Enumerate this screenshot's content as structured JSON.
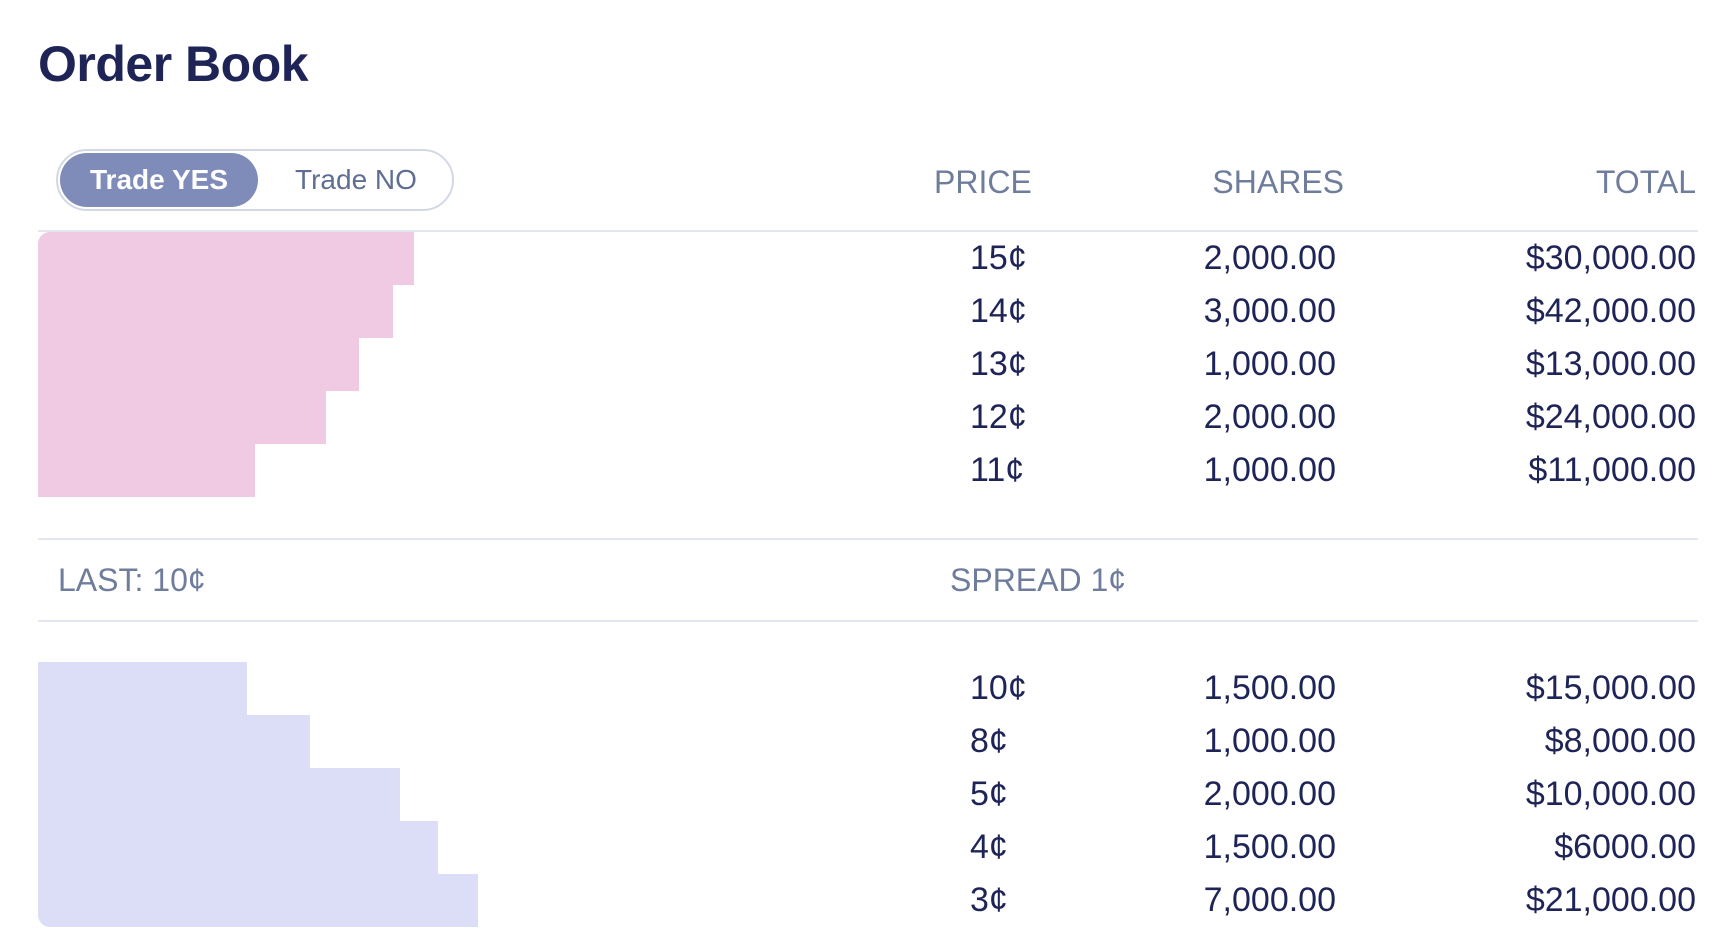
{
  "title": "Order Book",
  "toggle": {
    "yes_label": "Trade YES",
    "no_label": "Trade NO",
    "selected": "Trade YES"
  },
  "columns": {
    "price": "PRICE",
    "shares": "SHARES",
    "total": "TOTAL"
  },
  "asks": [
    {
      "price": "15¢",
      "shares": "2,000.00",
      "total": "$30,000.00",
      "depth": 0.218
    },
    {
      "price": "14¢",
      "shares": "3,000.00",
      "total": "$42,000.00",
      "depth": 0.206
    },
    {
      "price": "13¢",
      "shares": "1,000.00",
      "total": "$13,000.00",
      "depth": 0.186
    },
    {
      "price": "12¢",
      "shares": "2,000.00",
      "total": "$24,000.00",
      "depth": 0.167
    },
    {
      "price": "11¢",
      "shares": "1,000.00",
      "total": "$11,000.00",
      "depth": 0.126
    }
  ],
  "summary": {
    "last": "LAST: 10¢",
    "spread": "SPREAD 1¢"
  },
  "bids": [
    {
      "price": "10¢",
      "shares": "1,500.00",
      "total": "$15,000.00",
      "depth": 0.121
    },
    {
      "price": "8¢",
      "shares": "1,000.00",
      "total": "$8,000.00",
      "depth": 0.158
    },
    {
      "price": "5¢",
      "shares": "2,000.00",
      "total": "$10,000.00",
      "depth": 0.21
    },
    {
      "price": "4¢",
      "shares": "1,500.00",
      "total": "$6000.00",
      "depth": 0.232
    },
    {
      "price": "3¢",
      "shares": "7,000.00",
      "total": "$21,000.00",
      "depth": 0.255
    }
  ],
  "colors": {
    "ask_bar": "#f0cae2",
    "bid_bar": "#dcdef7",
    "toggle_active": "#7f8bb8",
    "text": "#1f2457",
    "muted": "#6f7d9c"
  }
}
